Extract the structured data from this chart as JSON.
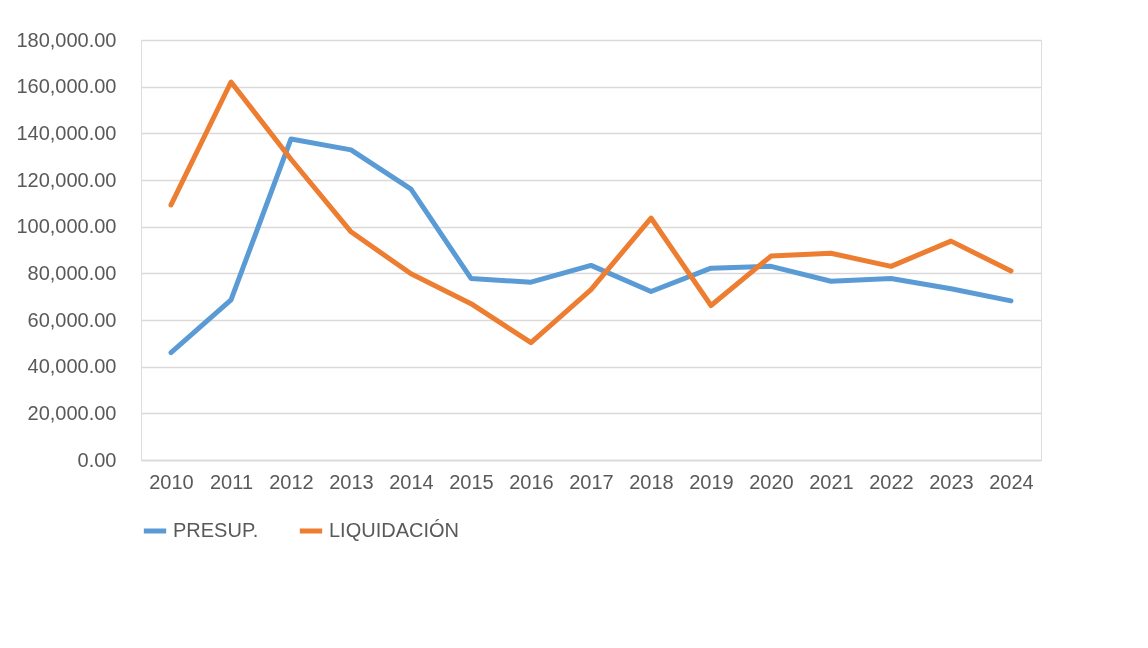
{
  "chart_data": {
    "type": "line",
    "categories": [
      "2010",
      "2011",
      "2012",
      "2013",
      "2014",
      "2015",
      "2016",
      "2017",
      "2018",
      "2019",
      "2020",
      "2021",
      "2022",
      "2023",
      "2024"
    ],
    "series": [
      {
        "name": "PRESUP.",
        "color": "#5b9bd5",
        "values": [
          46000,
          68600,
          137600,
          132900,
          116100,
          77800,
          76200,
          83400,
          72200,
          82200,
          83000,
          76600,
          77800,
          73400,
          68200
        ]
      },
      {
        "name": "LIQUIDACIÓN",
        "color": "#ed7d31",
        "values": [
          109300,
          162000,
          128900,
          97800,
          79800,
          67000,
          50300,
          73000,
          103700,
          66200,
          87400,
          88600,
          83000,
          93800,
          81000
        ]
      }
    ],
    "ylim": [
      0,
      180000
    ],
    "yticks": [
      {
        "value": 0,
        "label": "0.00"
      },
      {
        "value": 20000,
        "label": "20,000.00"
      },
      {
        "value": 40000,
        "label": "40,000.00"
      },
      {
        "value": 60000,
        "label": "60,000.00"
      },
      {
        "value": 80000,
        "label": "80,000.00"
      },
      {
        "value": 100000,
        "label": "100,000.00"
      },
      {
        "value": 120000,
        "label": "120,000.00"
      },
      {
        "value": 140000,
        "label": "140,000.00"
      },
      {
        "value": 160000,
        "label": "160,000.00"
      },
      {
        "value": 180000,
        "label": "180,000.00"
      }
    ],
    "grid": "y",
    "legend": "bottom",
    "marker": "none",
    "line_style": "solid"
  }
}
